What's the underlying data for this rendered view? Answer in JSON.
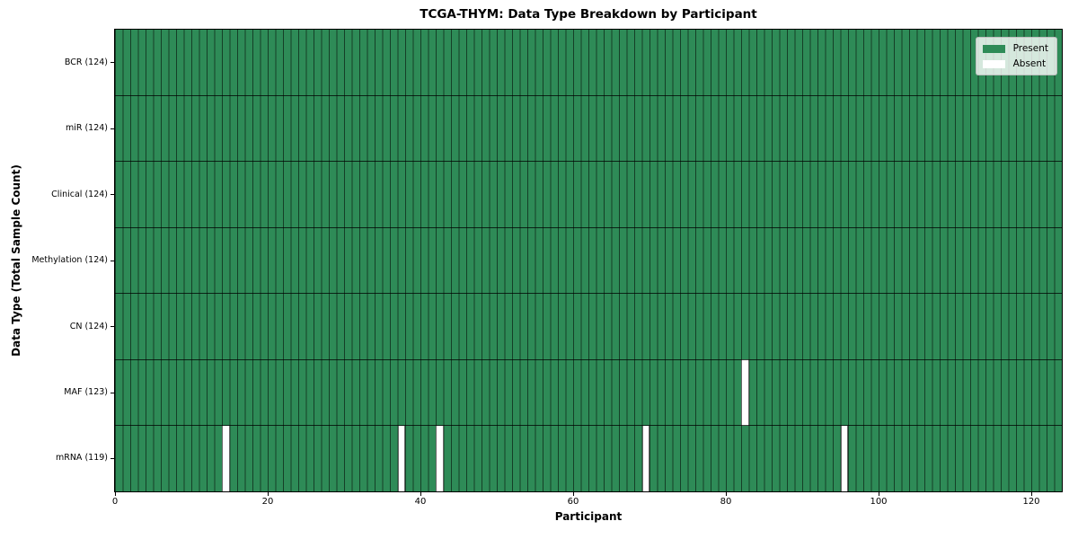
{
  "chart_data": {
    "type": "heatmap",
    "title": "TCGA-THYM: Data Type Breakdown by Participant",
    "xlabel": "Participant",
    "ylabel": "Data Type (Total Sample Count)",
    "n_participants": 124,
    "xlim": [
      0,
      124
    ],
    "x_ticks": [
      0,
      20,
      40,
      60,
      80,
      100,
      120
    ],
    "legend_position": "upper right",
    "grid": "cell edges on, dark row separators",
    "rows": [
      {
        "label": "BCR (124)",
        "data_type": "BCR",
        "present_count": 124,
        "absent_participant_indices": []
      },
      {
        "label": "miR (124)",
        "data_type": "miR",
        "present_count": 124,
        "absent_participant_indices": []
      },
      {
        "label": "Clinical (124)",
        "data_type": "Clinical",
        "present_count": 124,
        "absent_participant_indices": []
      },
      {
        "label": "Methylation (124)",
        "data_type": "Methylation",
        "present_count": 124,
        "absent_participant_indices": []
      },
      {
        "label": "CN (124)",
        "data_type": "CN",
        "present_count": 124,
        "absent_participant_indices": []
      },
      {
        "label": "MAF (123)",
        "data_type": "MAF",
        "present_count": 123,
        "absent_participant_indices": [
          82
        ]
      },
      {
        "label": "mRNA (119)",
        "data_type": "mRNA",
        "present_count": 119,
        "absent_participant_indices": [
          14,
          37,
          42,
          69,
          95
        ]
      }
    ],
    "legend": [
      {
        "label": "Present",
        "color": "#2e8b57"
      },
      {
        "label": "Absent",
        "color": "#ffffff"
      }
    ],
    "colors": {
      "present": "#2e8b57",
      "absent": "#ffffff",
      "cell_edge": "#1b3a28",
      "frame": "#000000",
      "background": "#ffffff"
    }
  }
}
